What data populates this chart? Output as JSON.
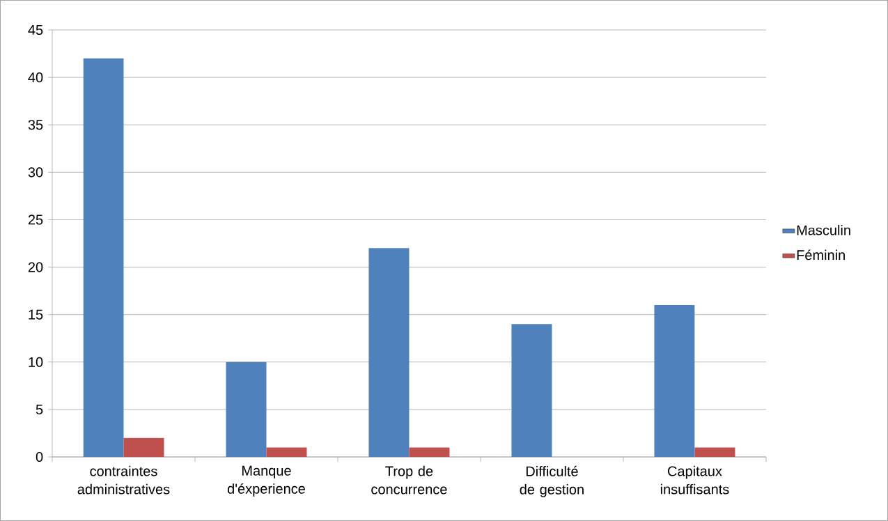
{
  "chart_data": {
    "type": "bar",
    "categories": [
      "contraintes administratives",
      "Manque d'éxperience",
      "Trop de concurrence",
      "Difficulté de gestion",
      "Capitaux insuffisants"
    ],
    "series": [
      {
        "name": "Masculin",
        "color": "#4f81bd",
        "values": [
          42,
          10,
          22,
          14,
          16
        ]
      },
      {
        "name": "Féminin",
        "color": "#c0504d",
        "values": [
          2,
          1,
          1,
          0,
          1
        ]
      }
    ],
    "ylim": [
      0,
      45
    ],
    "yticks": [
      0,
      5,
      10,
      15,
      20,
      25,
      30,
      35,
      40,
      45
    ],
    "grid": "y",
    "legend": "right"
  }
}
